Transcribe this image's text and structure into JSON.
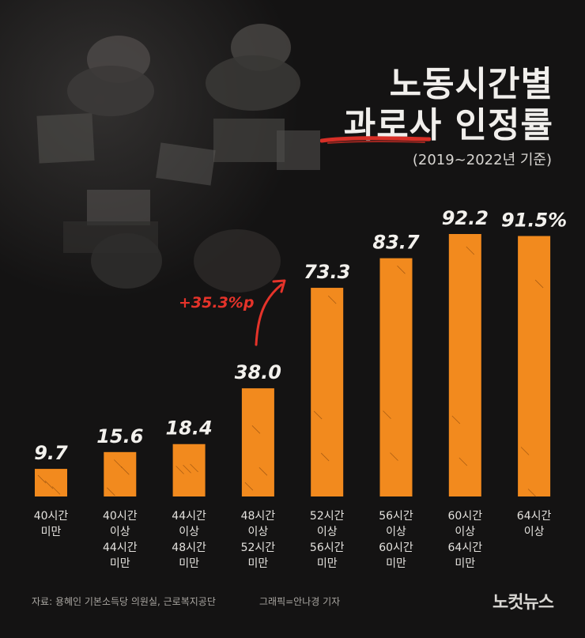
{
  "title": {
    "line1": "노동시간별",
    "line2": "과로사 인정률",
    "subtitle": "(2019~2022년 기준)"
  },
  "annotation": {
    "delta_label": "+35.3%p",
    "delta_color": "#e5332a"
  },
  "chart_data": {
    "type": "bar",
    "categories": [
      [
        "40시간",
        "미만"
      ],
      [
        "40시간",
        "이상",
        "44시간",
        "미만"
      ],
      [
        "44시간",
        "이상",
        "48시간",
        "미만"
      ],
      [
        "48시간",
        "이상",
        "52시간",
        "미만"
      ],
      [
        "52시간",
        "이상",
        "56시간",
        "미만"
      ],
      [
        "56시간",
        "이상",
        "60시간",
        "미만"
      ],
      [
        "60시간",
        "이상",
        "64시간",
        "미만"
      ],
      [
        "64시간",
        "이상"
      ]
    ],
    "values": [
      9.7,
      15.6,
      18.4,
      38.0,
      73.3,
      83.7,
      92.2,
      91.5
    ],
    "value_labels": [
      "9.7",
      "15.6",
      "18.4",
      "38.0",
      "73.3",
      "83.7",
      "92.2",
      "91.5%"
    ],
    "ylim": [
      0,
      100
    ],
    "bar_color": "#f28a1e",
    "grid": false
  },
  "footer": {
    "source": "자료: 용혜인 기본소득당 의원실, 근로복지공단",
    "credit": "그래픽=안나경 기자",
    "logo": "노컷뉴스"
  }
}
